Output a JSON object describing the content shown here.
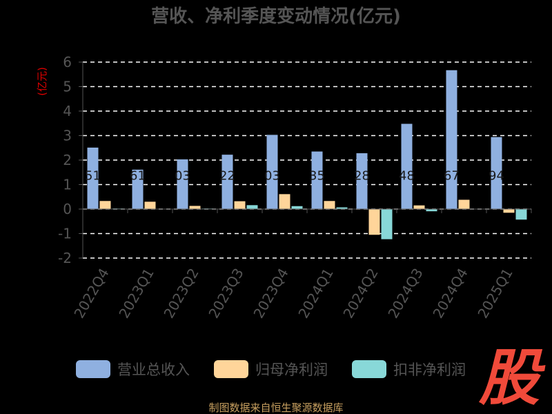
{
  "chart_data": {
    "type": "bar",
    "title": "营收、净利季度变动情况(亿元)",
    "ylabel": "(亿元)",
    "ylim": [
      -2,
      6
    ],
    "yticks": [
      -2,
      -1,
      0,
      1,
      2,
      3,
      4,
      5,
      6
    ],
    "grid": true,
    "legend_position": "bottom",
    "categories": [
      "2022Q4",
      "2023Q1",
      "2023Q2",
      "2023Q3",
      "2023Q4",
      "2024Q1",
      "2024Q2",
      "2024Q3",
      "2024Q4",
      "2025Q1"
    ],
    "series": [
      {
        "name": "营业总收入",
        "color": "#8fb0e0",
        "values": [
          2.51,
          1.61,
          2.03,
          2.22,
          3.03,
          2.35,
          2.28,
          3.48,
          5.67,
          2.94
        ],
        "labels": [
          "51",
          "61",
          "03",
          "22",
          "03",
          "35",
          "28",
          "48",
          "67",
          "94"
        ]
      },
      {
        "name": "归母净利润",
        "color": "#ffd59a",
        "values": [
          0.33,
          0.3,
          0.13,
          0.32,
          0.61,
          0.33,
          -1.05,
          0.15,
          0.38,
          -0.15
        ]
      },
      {
        "name": "扣非净利润",
        "color": "#88d8d8",
        "values": [
          0.02,
          0.0,
          0.02,
          0.16,
          0.12,
          0.07,
          -1.23,
          -0.09,
          0.01,
          -0.43
        ]
      }
    ]
  },
  "source_text": "制图数据来自恒生聚源数据库",
  "logo_text": "股"
}
